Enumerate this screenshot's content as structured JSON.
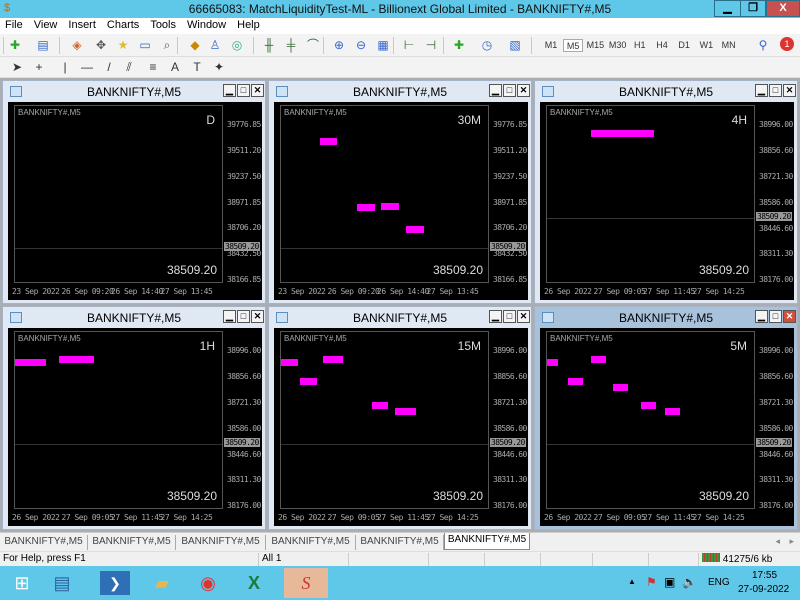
{
  "window": {
    "title": "66665083: MatchLiquidityTest-ML - Billionext Global Limited - BANKNIFTY#,M5",
    "minimize": "▁",
    "restore": "❐",
    "close": "X"
  },
  "menu": [
    "File",
    "View",
    "Insert",
    "Charts",
    "Tools",
    "Window",
    "Help"
  ],
  "toolbar": {
    "timeframes": [
      "M1",
      "M5",
      "M15",
      "M30",
      "H1",
      "H4",
      "D1",
      "W1",
      "MN"
    ],
    "selected_timeframe": "M5",
    "alert_count": "1"
  },
  "colors": {
    "zone": "#ff00ff",
    "chart_bg": "#000000",
    "titlebar": "#5fc8e9"
  },
  "chart_data": [
    {
      "type": "chart-window",
      "title": "BANKNIFTY#,M5",
      "symbol": "BANKNIFTY#,M5",
      "timeframe_label": "D",
      "bid": "38509.20",
      "current_price": "38509.20",
      "ylim": [
        38136,
        39985
      ],
      "price_labels": [
        "39776.85",
        "39511.20",
        "39237.50",
        "38971.85",
        "38706.20",
        "38432.50",
        "38166.85"
      ],
      "price_values": [
        39776.85,
        39511.2,
        39237.5,
        38971.85,
        38706.2,
        38432.5,
        38166.85
      ],
      "date_labels": [
        "23 Sep 2022",
        "26 Sep 09:20",
        "26 Sep 14:40",
        "27 Sep 13:45"
      ],
      "zones": []
    },
    {
      "type": "chart-window",
      "title": "BANKNIFTY#,M5",
      "symbol": "BANKNIFTY#,M5",
      "timeframe_label": "30M",
      "bid": "38509.20",
      "current_price": "38509.20",
      "ylim": [
        38136,
        39985
      ],
      "price_labels": [
        "39776.85",
        "39511.20",
        "39237.50",
        "38971.85",
        "38706.20",
        "38432.50",
        "38166.85"
      ],
      "price_values": [
        39776.85,
        39511.2,
        39237.5,
        38971.85,
        38706.2,
        38432.5,
        38166.85
      ],
      "date_labels": [
        "23 Sep 2022",
        "26 Sep 09:20",
        "26 Sep 14:40",
        "27 Sep 13:45"
      ],
      "zones": [
        {
          "price": 39621
        },
        {
          "price": 38935
        },
        {
          "price": 38945
        },
        {
          "price": 38707
        }
      ]
    },
    {
      "type": "chart-window",
      "title": "BANKNIFTY#,M5",
      "symbol": "BANKNIFTY#,M5",
      "timeframe_label": "4H",
      "bid": "38509.20",
      "current_price": "38509.20",
      "ylim": [
        38160,
        39102
      ],
      "price_labels": [
        "38996.00",
        "38856.60",
        "38721.30",
        "38586.00",
        "38446.60",
        "38311.30",
        "38176.00"
      ],
      "price_values": [
        38996,
        38856.6,
        38721.3,
        38586,
        38446.6,
        38311.3,
        38176
      ],
      "date_labels": [
        "26 Sep 2022",
        "27 Sep 09:05",
        "27 Sep 11:45",
        "27 Sep 14:25"
      ],
      "zones": [
        {
          "price": 38954
        }
      ]
    },
    {
      "type": "chart-window",
      "title": "BANKNIFTY#,M5",
      "symbol": "BANKNIFTY#,M5",
      "timeframe_label": "1H",
      "bid": "38509.20",
      "current_price": "38509.20",
      "ylim": [
        38160,
        39102
      ],
      "price_labels": [
        "38996.00",
        "38856.60",
        "38721.30",
        "38586.00",
        "38446.60",
        "38311.30",
        "38176.00"
      ],
      "price_values": [
        38996,
        38856.6,
        38721.3,
        38586,
        38446.6,
        38311.3,
        38176
      ],
      "date_labels": [
        "26 Sep 2022",
        "27 Sep 09:05",
        "27 Sep 11:45",
        "27 Sep 14:25"
      ],
      "zones": [
        {
          "price": 38943
        },
        {
          "price": 38959
        }
      ]
    },
    {
      "type": "chart-window",
      "title": "BANKNIFTY#,M5",
      "symbol": "BANKNIFTY#,M5",
      "timeframe_label": "15M",
      "bid": "38509.20",
      "current_price": "38509.20",
      "ylim": [
        38160,
        39102
      ],
      "price_labels": [
        "38996.00",
        "38856.60",
        "38721.30",
        "38586.00",
        "38446.60",
        "38311.30",
        "38176.00"
      ],
      "price_values": [
        38996,
        38856.6,
        38721.3,
        38586,
        38446.6,
        38311.3,
        38176
      ],
      "date_labels": [
        "26 Sep 2022",
        "27 Sep 09:05",
        "27 Sep 11:45",
        "27 Sep 14:25"
      ],
      "zones": [
        {
          "price": 38943
        },
        {
          "price": 38842
        },
        {
          "price": 38959
        },
        {
          "price": 38714
        },
        {
          "price": 38682
        }
      ]
    },
    {
      "type": "chart-window",
      "title": "BANKNIFTY#,M5",
      "symbol": "BANKNIFTY#,M5",
      "timeframe_label": "5M",
      "bid": "38509.20",
      "current_price": "38509.20",
      "ylim": [
        38160,
        39102
      ],
      "price_labels": [
        "38996.00",
        "38856.60",
        "38721.30",
        "38586.00",
        "38446.60",
        "38311.30",
        "38176.00"
      ],
      "price_values": [
        38996,
        38856.6,
        38721.3,
        38586,
        38446.6,
        38311.3,
        38176
      ],
      "date_labels": [
        "26 Sep 2022",
        "27 Sep 09:05",
        "27 Sep 11:45",
        "27 Sep 14:25"
      ],
      "zones": [
        {
          "price": 38943
        },
        {
          "price": 38842
        },
        {
          "price": 38959
        },
        {
          "price": 38810
        },
        {
          "price": 38714
        },
        {
          "price": 38682
        }
      ],
      "active": true
    }
  ],
  "tabs": [
    "BANKNIFTY#,M5",
    "BANKNIFTY#,M5",
    "BANKNIFTY#,M5",
    "BANKNIFTY#,M5",
    "BANKNIFTY#,M5",
    "BANKNIFTY#,M5"
  ],
  "active_tab": 5,
  "status": {
    "help": "For Help, press F1",
    "profile": "All 1",
    "traffic": "41275/6 kb"
  },
  "taskbar": {
    "keyboard": "ENG",
    "time": "17:55",
    "date": "27-09-2022"
  }
}
